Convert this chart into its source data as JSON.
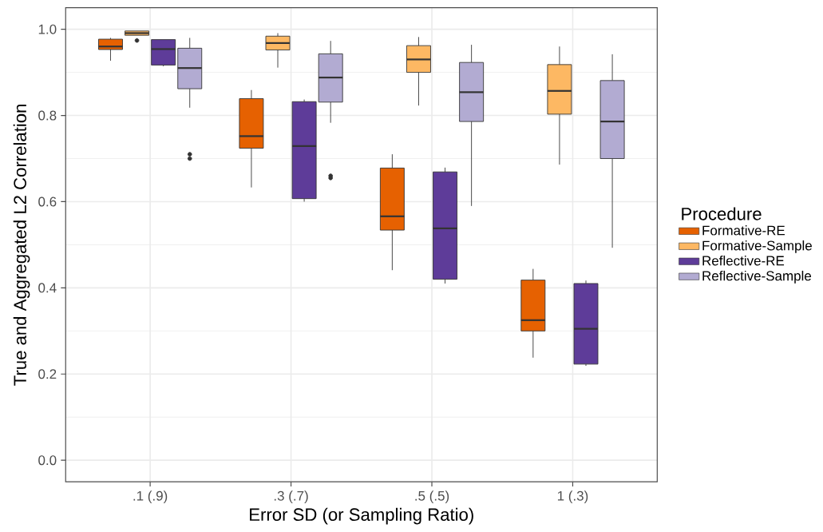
{
  "chart_data": {
    "type": "box",
    "xlabel": "Error SD (or Sampling Ratio)",
    "ylabel": "True and Aggregated L2 Correlation",
    "legend_title": "Procedure",
    "categories": [
      ".1 (.9)",
      ".3 (.7)",
      ".5 (.5)",
      "1 (.3)"
    ],
    "ylim": [
      -0.05,
      1.05
    ],
    "yticks": [
      {
        "value": 0,
        "label": "0.0"
      },
      {
        "value": 0.2,
        "label": "0.2"
      },
      {
        "value": 0.4,
        "label": "0.4"
      },
      {
        "value": 0.6,
        "label": "0.6"
      },
      {
        "value": 0.8,
        "label": "0.8"
      },
      {
        "value": 1,
        "label": "1.0"
      }
    ],
    "grid": true,
    "legend": "right",
    "series": [
      {
        "name": "Formative-RE",
        "color": "#e66101",
        "boxes": [
          {
            "low": 0.927,
            "q1": 0.953,
            "median": 0.96,
            "q3": 0.977,
            "high": 0.98
          },
          {
            "low": 0.633,
            "q1": 0.724,
            "median": 0.752,
            "q3": 0.839,
            "high": 0.859
          },
          {
            "low": 0.441,
            "q1": 0.534,
            "median": 0.566,
            "q3": 0.678,
            "high": 0.71
          },
          {
            "low": 0.238,
            "q1": 0.3,
            "median": 0.325,
            "q3": 0.418,
            "high": 0.444
          }
        ]
      },
      {
        "name": "Formative-Sample",
        "color": "#fdb863",
        "boxes": [
          {
            "low": 0.986,
            "q1": 0.986,
            "median": 0.991,
            "q3": 0.996,
            "high": 0.996,
            "outliers": [
              0.974
            ]
          },
          {
            "low": 0.911,
            "q1": 0.952,
            "median": 0.968,
            "q3": 0.984,
            "high": 0.991
          },
          {
            "low": 0.823,
            "q1": 0.9,
            "median": 0.93,
            "q3": 0.962,
            "high": 0.982
          },
          {
            "low": 0.686,
            "q1": 0.803,
            "median": 0.857,
            "q3": 0.918,
            "high": 0.96
          }
        ]
      },
      {
        "name": "Reflective-RE",
        "color": "#5e3c99",
        "boxes": [
          {
            "low": 0.914,
            "q1": 0.917,
            "median": 0.954,
            "q3": 0.976,
            "high": 0.976
          },
          {
            "low": 0.6,
            "q1": 0.607,
            "median": 0.729,
            "q3": 0.832,
            "high": 0.837
          },
          {
            "low": 0.41,
            "q1": 0.42,
            "median": 0.538,
            "q3": 0.669,
            "high": 0.679
          },
          {
            "low": 0.219,
            "q1": 0.223,
            "median": 0.305,
            "q3": 0.41,
            "high": 0.417
          }
        ]
      },
      {
        "name": "Reflective-Sample",
        "color": "#b2abd2",
        "boxes": [
          {
            "low": 0.818,
            "q1": 0.862,
            "median": 0.91,
            "q3": 0.956,
            "high": 0.98,
            "outliers": [
              0.71,
              0.7
            ]
          },
          {
            "low": 0.783,
            "q1": 0.831,
            "median": 0.888,
            "q3": 0.943,
            "high": 0.973,
            "outliers": [
              0.66,
              0.655
            ]
          },
          {
            "low": 0.59,
            "q1": 0.786,
            "median": 0.854,
            "q3": 0.923,
            "high": 0.964
          },
          {
            "low": 0.493,
            "q1": 0.7,
            "median": 0.786,
            "q3": 0.881,
            "high": 0.942
          }
        ]
      }
    ]
  }
}
